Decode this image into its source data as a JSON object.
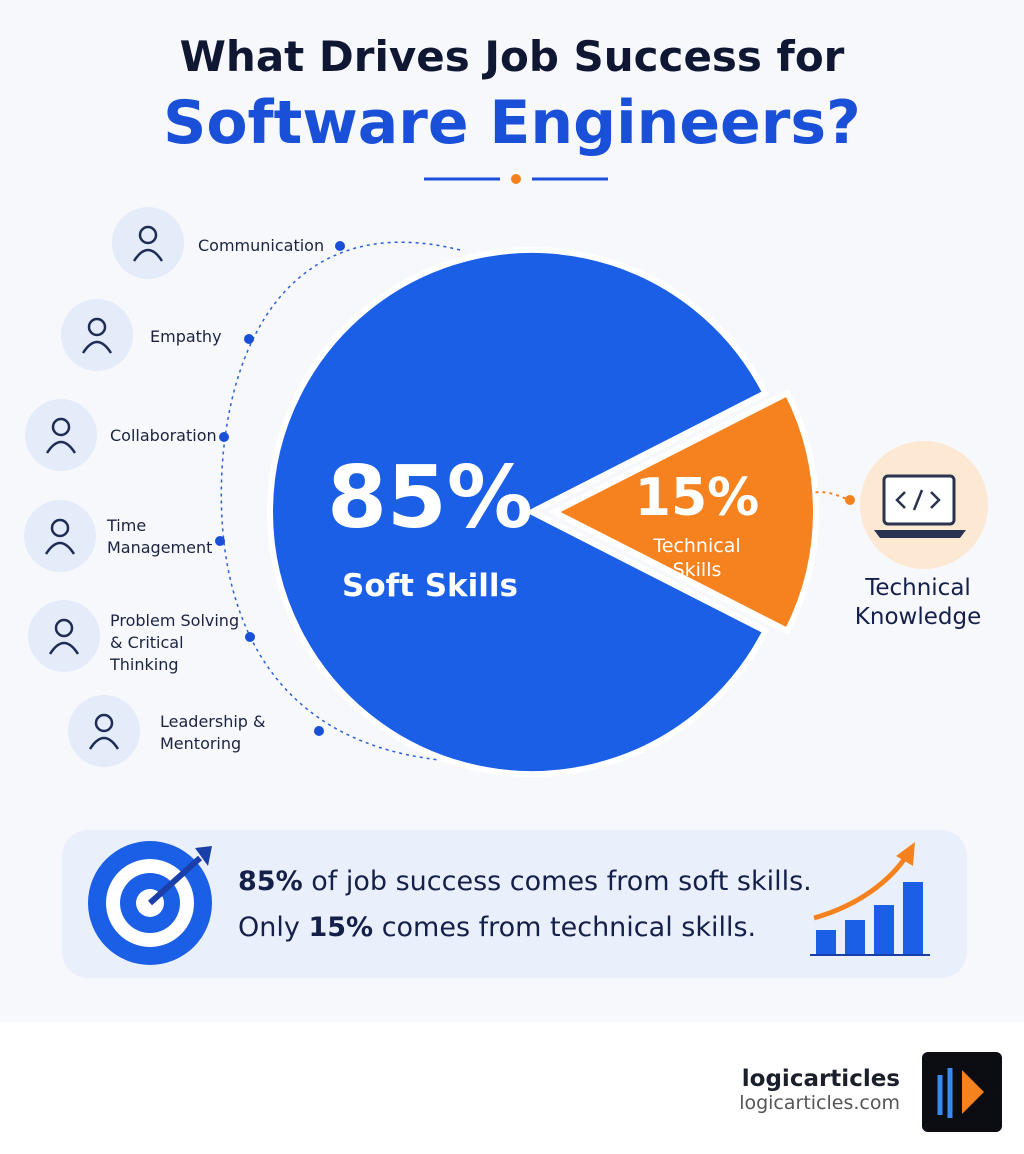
{
  "chart_data": {
    "type": "pie",
    "title": "What Drives Job Success for",
    "subtitle": "Software Engineers?",
    "categories": [
      "Soft Skills",
      "Technical Skills"
    ],
    "values": [
      85,
      15
    ],
    "value_labels": [
      "85%",
      "15%"
    ],
    "colors": [
      "#1a5fe6",
      "#f5821f"
    ]
  },
  "soft_skills": [
    "Communication",
    "Empathy",
    "Collaboration",
    "Time Management",
    "Problem Solving & Critical Thinking",
    "Leadership & Mentoring"
  ],
  "technical": "Technical Knowledge",
  "callout": [
    {
      "bold": "85%",
      "text": "of job success comes from soft skills."
    },
    {
      "bold": "15%",
      "text": "comes from technical skills.",
      "lead": "Only"
    }
  ],
  "brand": {
    "name": "logicarticles",
    "url": "logicarticles.com"
  }
}
